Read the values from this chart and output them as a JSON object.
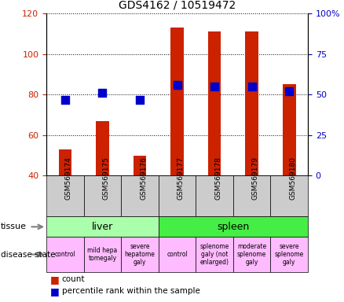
{
  "title": "GDS4162 / 10519472",
  "samples": [
    "GSM569174",
    "GSM569175",
    "GSM569176",
    "GSM569177",
    "GSM569178",
    "GSM569179",
    "GSM569180"
  ],
  "counts": [
    53,
    67,
    50,
    113,
    111,
    111,
    85
  ],
  "percentile_ranks": [
    47,
    51,
    47,
    56,
    55,
    55,
    52
  ],
  "ylim_left": [
    40,
    120
  ],
  "ylim_right": [
    0,
    100
  ],
  "yticks_left": [
    40,
    60,
    80,
    100,
    120
  ],
  "yticks_right": [
    0,
    25,
    50,
    75,
    100
  ],
  "ytick_labels_right": [
    "0",
    "25",
    "50",
    "75",
    "100%"
  ],
  "bar_color": "#cc2200",
  "dot_color": "#0000cc",
  "tissue_liver_label": "liver",
  "tissue_spleen_label": "spleen",
  "tissue_liver_color": "#aaffaa",
  "tissue_spleen_color": "#44ee44",
  "disease_labels": [
    "control",
    "mild hepa\ntomegaly",
    "severe\nhepatome\ngaly",
    "control",
    "splenome\ngaly (not\nenlarged)",
    "moderate\nsplenome\ngaly",
    "severe\nsplenome\ngaly"
  ],
  "disease_color": "#ffbbff",
  "legend_count_label": "count",
  "legend_percentile_label": "percentile rank within the sample",
  "tick_label_color_left": "#cc2200",
  "tick_label_color_right": "#0000cc",
  "xlabel_area_color": "#cccccc",
  "bar_width": 0.35,
  "dot_size": 45,
  "liver_cols": 3,
  "spleen_cols": 4,
  "n_cols": 7
}
